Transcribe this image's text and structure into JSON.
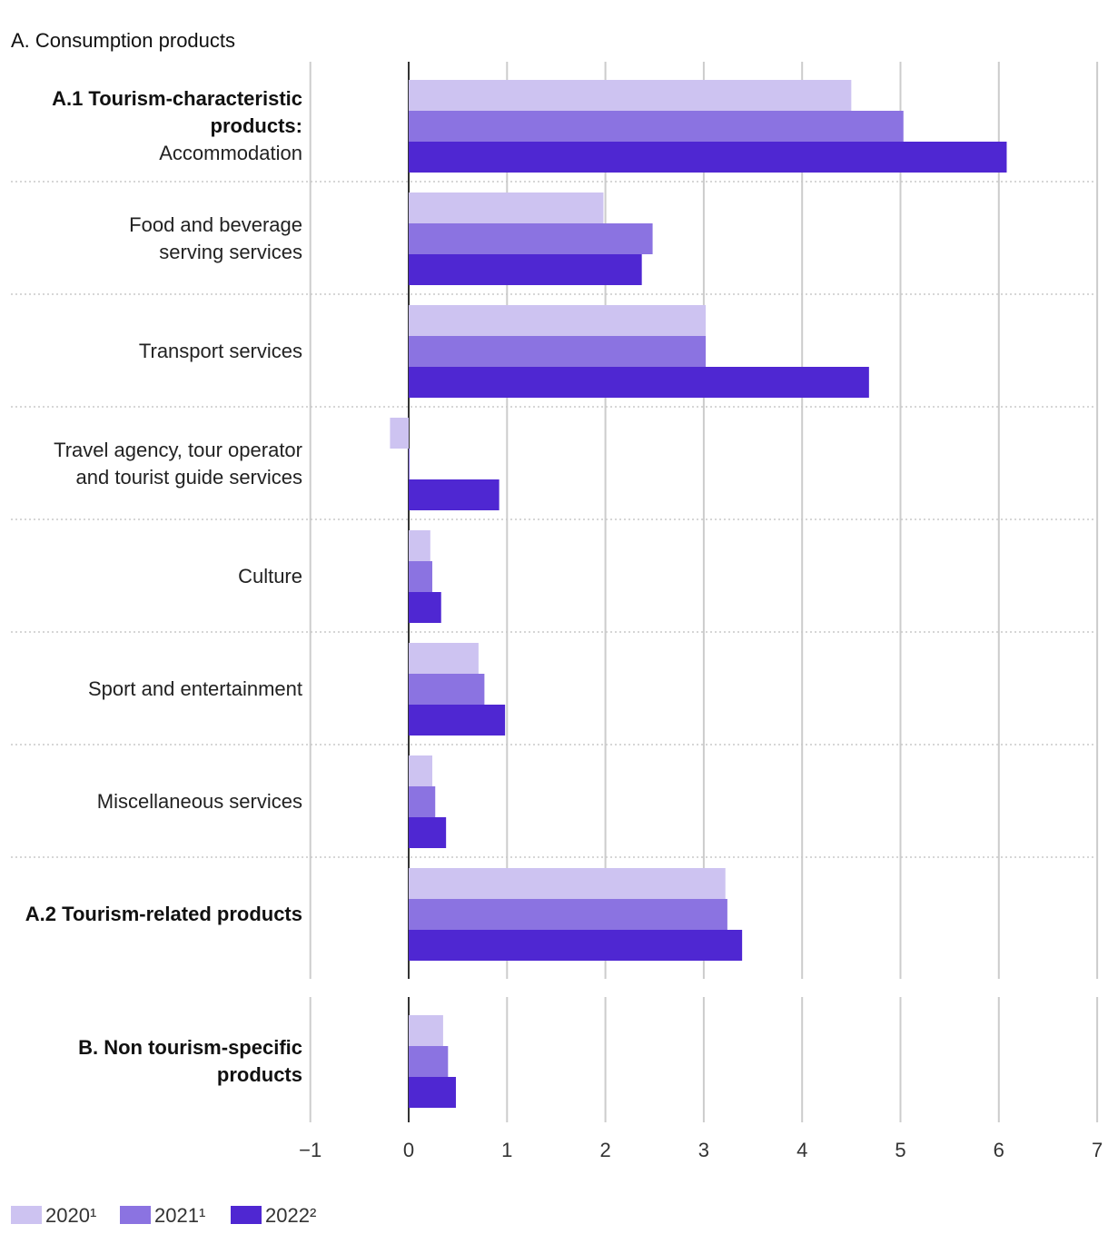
{
  "chart_data": {
    "type": "bar",
    "orientation": "horizontal",
    "section_title": "A. Consumption products",
    "xlim": [
      -1,
      7
    ],
    "x_ticks": [
      -1,
      0,
      1,
      2,
      3,
      4,
      5,
      6,
      7
    ],
    "x_tick_labels": [
      "−1",
      "0",
      "1",
      "2",
      "3",
      "4",
      "5",
      "6",
      "7"
    ],
    "legend": {
      "position": "bottom-left"
    },
    "series": [
      {
        "name": "2020¹",
        "color": "#cdc3f1"
      },
      {
        "name": "2021¹",
        "color": "#8b73e1"
      },
      {
        "name": "2022²",
        "color": "#4f27d2"
      }
    ],
    "groups": [
      {
        "categories": [
          {
            "lines": [
              {
                "text": "A.1 Tourism-characteristic",
                "bold": true
              },
              {
                "text": "products:",
                "bold": true
              },
              {
                "text": "Accommodation",
                "bold": false
              }
            ],
            "values": [
              4.5,
              5.03,
              6.08
            ]
          },
          {
            "lines": [
              {
                "text": "Food and beverage",
                "bold": false
              },
              {
                "text": "serving services",
                "bold": false
              }
            ],
            "values": [
              1.98,
              2.48,
              2.37
            ]
          },
          {
            "lines": [
              {
                "text": "Transport services",
                "bold": false
              }
            ],
            "values": [
              3.02,
              3.02,
              4.68
            ]
          },
          {
            "lines": [
              {
                "text": "Travel agency, tour operator",
                "bold": false
              },
              {
                "text": "and tourist guide services",
                "bold": false
              }
            ],
            "values": [
              -0.19,
              0.01,
              0.92
            ]
          },
          {
            "lines": [
              {
                "text": "Culture",
                "bold": false
              }
            ],
            "values": [
              0.22,
              0.24,
              0.33
            ]
          },
          {
            "lines": [
              {
                "text": "Sport and entertainment",
                "bold": false
              }
            ],
            "values": [
              0.71,
              0.77,
              0.98
            ]
          },
          {
            "lines": [
              {
                "text": "Miscellaneous services",
                "bold": false
              }
            ],
            "values": [
              0.24,
              0.27,
              0.38
            ]
          },
          {
            "lines": [
              {
                "text": "A.2 Tourism-related products",
                "bold": true
              }
            ],
            "values": [
              3.22,
              3.24,
              3.39
            ]
          }
        ]
      },
      {
        "categories": [
          {
            "lines": [
              {
                "text": "B. Non tourism-specific",
                "bold": true
              },
              {
                "text": "products",
                "bold": true
              }
            ],
            "values": [
              0.35,
              0.4,
              0.48
            ]
          }
        ]
      }
    ]
  }
}
